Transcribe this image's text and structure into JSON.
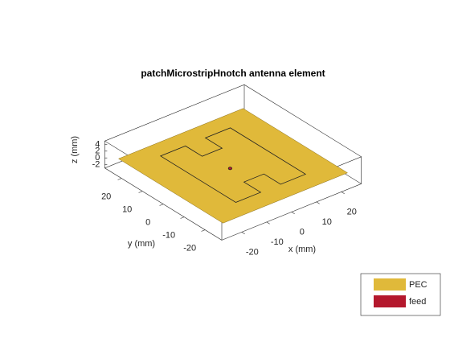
{
  "chart_data": {
    "type": "antenna3d",
    "title": "patchMicrostripHnotch antenna element",
    "xlabel": "x (mm)",
    "ylabel": "y (mm)",
    "zlabel": "z (mm)",
    "xlim": [
      -28,
      28
    ],
    "ylim": [
      -28,
      28
    ],
    "zlim": [
      -3,
      5
    ],
    "xticks": [
      -20,
      -10,
      0,
      10,
      20
    ],
    "yticks": [
      -20,
      -10,
      0,
      10,
      20
    ],
    "zticks": [
      -2,
      0,
      2,
      4
    ],
    "series": [
      {
        "name": "PEC",
        "color": "#e0b93a"
      },
      {
        "name": "feed",
        "color": "#b4182d"
      }
    ]
  }
}
